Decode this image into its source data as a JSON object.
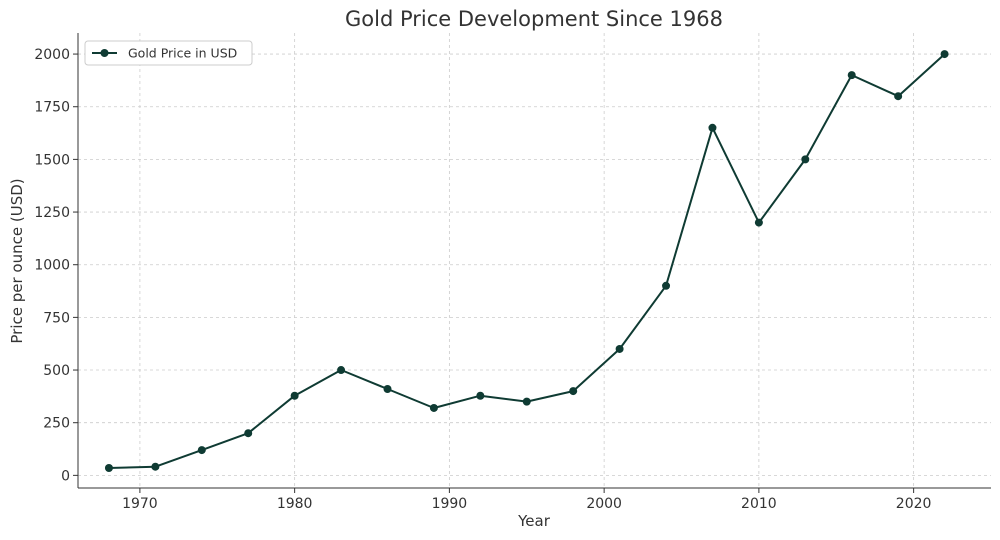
{
  "chart_data": {
    "type": "line",
    "title": "Gold Price Development Since 1968",
    "xlabel": "Year",
    "ylabel": "Price per ounce (USD)",
    "xlim": [
      1966,
      2025
    ],
    "ylim": [
      -60,
      2100
    ],
    "x_ticks": [
      1970,
      1980,
      1990,
      2000,
      2010,
      2020
    ],
    "y_ticks": [
      0,
      250,
      500,
      750,
      1000,
      1250,
      1500,
      1750,
      2000
    ],
    "grid": true,
    "legend_position": "top-left",
    "series": [
      {
        "name": "Gold Price in USD",
        "color": "#0f3b33",
        "x": [
          1968,
          1971,
          1974,
          1977,
          1980,
          1983,
          1986,
          1989,
          1992,
          1995,
          1998,
          2001,
          2004,
          2007,
          2010,
          2013,
          2016,
          2019,
          2022
        ],
        "values": [
          35,
          41,
          120,
          200,
          378,
          500,
          410,
          320,
          378,
          350,
          400,
          600,
          900,
          1650,
          1200,
          1500,
          1900,
          1800,
          2000
        ]
      }
    ]
  }
}
